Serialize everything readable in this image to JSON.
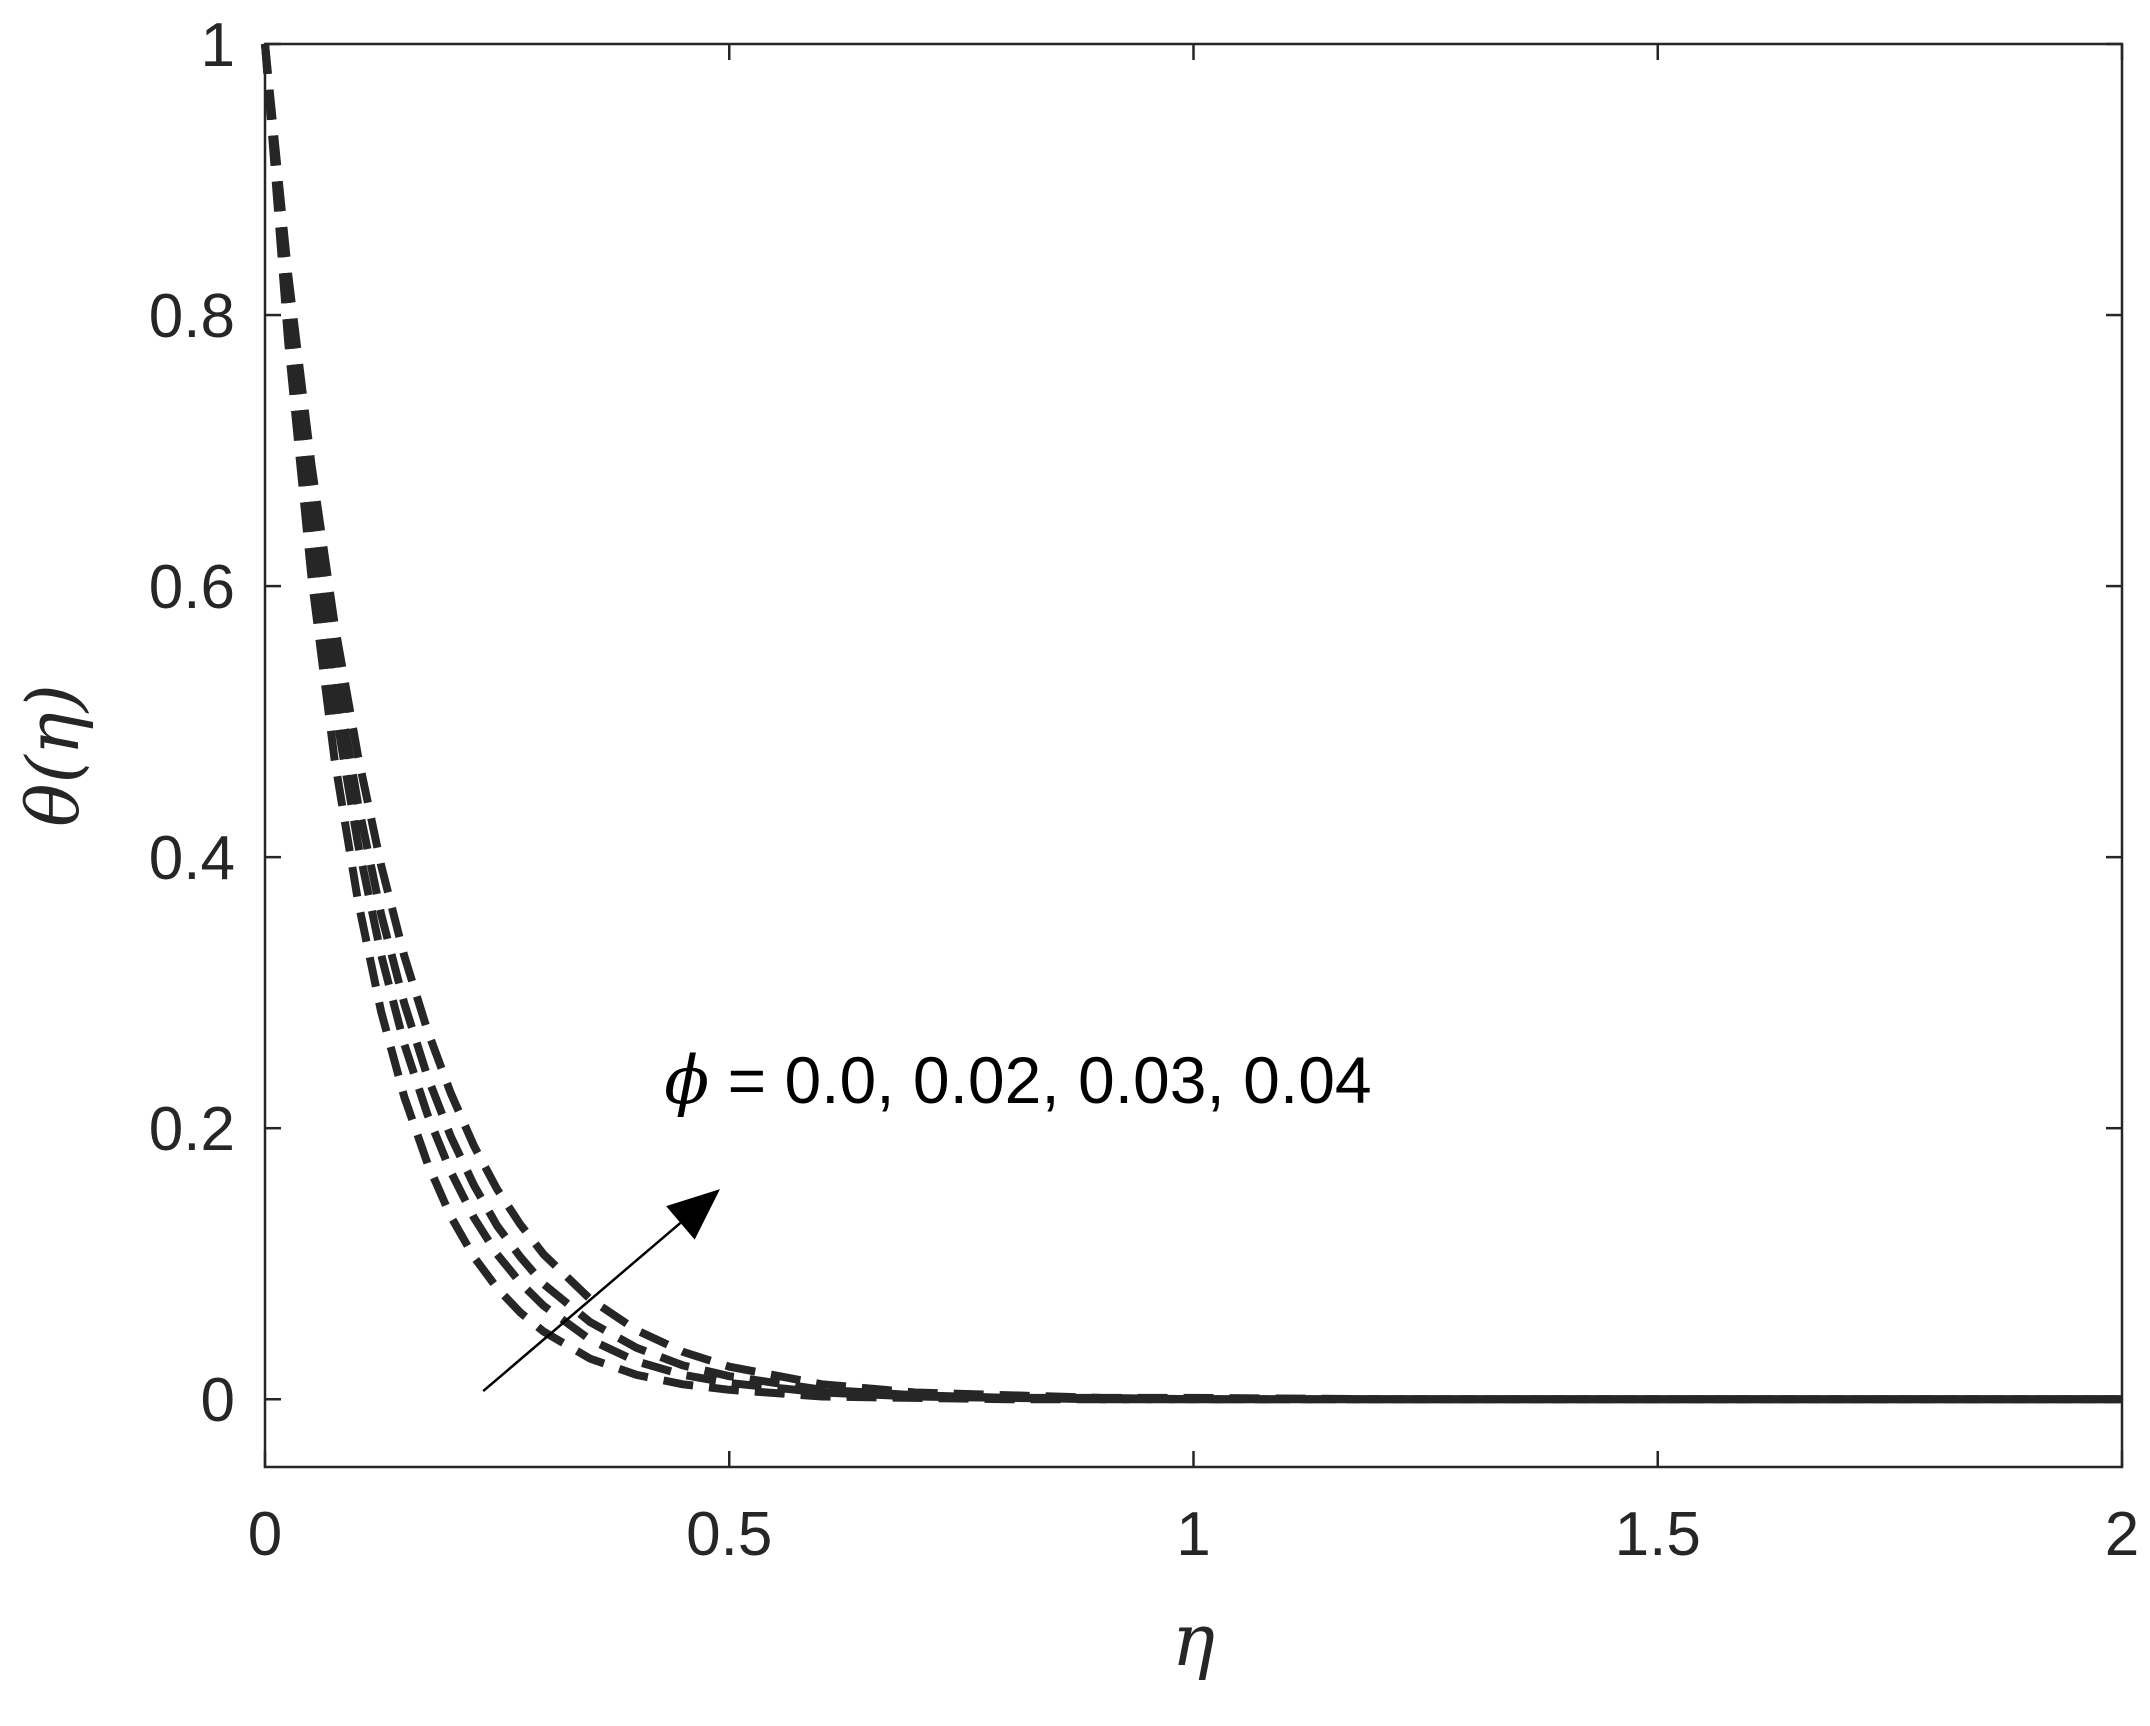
{
  "chart_data": {
    "type": "line",
    "xlabel": "η",
    "ylabel": "θ(η)",
    "xlim": [
      0,
      2
    ],
    "ylim": [
      -0.05,
      1
    ],
    "xticks": [
      0,
      0.5,
      1,
      1.5,
      2
    ],
    "xtick_labels": [
      "0",
      "0.5",
      "1",
      "1.5",
      "2"
    ],
    "yticks": [
      0,
      0.2,
      0.4,
      0.6,
      0.8,
      1
    ],
    "ytick_labels": [
      "0",
      "0.2",
      "0.4",
      "0.6",
      "0.8",
      "1"
    ],
    "grid": false,
    "line_style": "dashed",
    "line_color": "#262626",
    "x": [
      0,
      0.025,
      0.05,
      0.075,
      0.1,
      0.125,
      0.15,
      0.175,
      0.2,
      0.225,
      0.25,
      0.275,
      0.3,
      0.35,
      0.4,
      0.45,
      0.5,
      0.6,
      0.7,
      0.8,
      0.9,
      1.0,
      1.2,
      1.4,
      1.6,
      1.8,
      2.0
    ],
    "series": [
      {
        "values": [
          1,
          0.78,
          0.607,
          0.472,
          0.368,
          0.286,
          0.223,
          0.174,
          0.135,
          0.105,
          0.082,
          0.064,
          0.05,
          0.03,
          0.018,
          0.011,
          0.007,
          0.002,
          0.001,
          0,
          0,
          0,
          0,
          0,
          0,
          0,
          0
        ]
      },
      {
        "values": [
          1,
          0.8,
          0.64,
          0.512,
          0.41,
          0.328,
          0.262,
          0.21,
          0.168,
          0.134,
          0.107,
          0.086,
          0.069,
          0.044,
          0.028,
          0.018,
          0.012,
          0.005,
          0.002,
          0.001,
          0,
          0,
          0,
          0,
          0,
          0,
          0
        ]
      },
      {
        "values": [
          1,
          0.815,
          0.663,
          0.54,
          0.44,
          0.358,
          0.292,
          0.238,
          0.194,
          0.158,
          0.128,
          0.105,
          0.085,
          0.057,
          0.038,
          0.025,
          0.017,
          0.007,
          0.003,
          0.001,
          0.001,
          0,
          0,
          0,
          0,
          0,
          0
        ]
      },
      {
        "values": [
          1,
          0.83,
          0.69,
          0.572,
          0.475,
          0.394,
          0.327,
          0.272,
          0.226,
          0.187,
          0.155,
          0.129,
          0.107,
          0.074,
          0.051,
          0.035,
          0.024,
          0.011,
          0.005,
          0.003,
          0.001,
          0.001,
          0,
          0,
          0,
          0,
          0
        ]
      }
    ],
    "annotation": {
      "symbol": "ϕ",
      "text": " = 0.0, 0.02, 0.03, 0.04",
      "x": 0.43,
      "y": 0.235,
      "arrow_from": [
        0.235,
        0.006
      ],
      "arrow_to": [
        0.49,
        0.155
      ]
    }
  }
}
